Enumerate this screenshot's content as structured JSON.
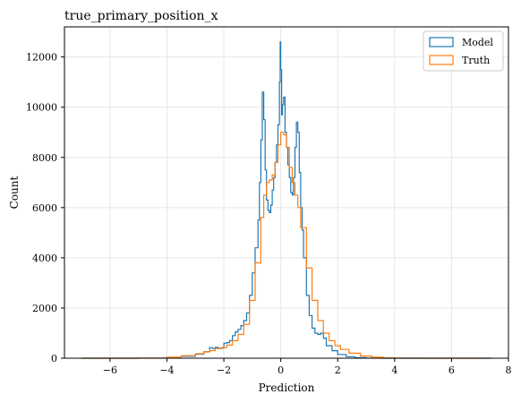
{
  "chart_data": {
    "type": "line",
    "title": "true_primary_position_x",
    "xlabel": "Prediction",
    "ylabel": "Count",
    "xlim": [
      -7.6,
      8.0
    ],
    "ylim": [
      0,
      13200
    ],
    "grid": true,
    "legend_position": "top-right",
    "x_ticks": [
      -6,
      -4,
      -2,
      0,
      2,
      4,
      6,
      8
    ],
    "x_tick_labels": [
      "−6",
      "−4",
      "−2",
      "0",
      "2",
      "4",
      "6",
      "8"
    ],
    "y_ticks": [
      0,
      2000,
      4000,
      6000,
      8000,
      10000,
      12000
    ],
    "y_tick_labels": [
      "0",
      "2000",
      "4000",
      "6000",
      "8000",
      "10000",
      "12000"
    ],
    "series": [
      {
        "name": "Model",
        "color": "#1f77b4",
        "x": [
          -7.0,
          -6.0,
          -5.0,
          -4.0,
          -3.5,
          -3.0,
          -2.7,
          -2.5,
          -2.4,
          -2.3,
          -2.2,
          -2.0,
          -1.9,
          -1.8,
          -1.7,
          -1.6,
          -1.5,
          -1.4,
          -1.3,
          -1.2,
          -1.1,
          -1.0,
          -0.9,
          -0.8,
          -0.75,
          -0.7,
          -0.65,
          -0.6,
          -0.55,
          -0.5,
          -0.45,
          -0.4,
          -0.35,
          -0.3,
          -0.25,
          -0.2,
          -0.15,
          -0.1,
          -0.05,
          -0.02,
          0.0,
          0.03,
          0.06,
          0.1,
          0.15,
          0.2,
          0.25,
          0.3,
          0.35,
          0.4,
          0.45,
          0.5,
          0.55,
          0.6,
          0.65,
          0.7,
          0.75,
          0.8,
          0.9,
          1.0,
          1.1,
          1.2,
          1.3,
          1.4,
          1.5,
          1.6,
          1.8,
          2.0,
          2.3,
          2.6,
          3.0,
          3.5,
          4.0,
          5.0,
          6.0,
          7.0,
          7.4
        ],
        "y": [
          0,
          0,
          5,
          30,
          80,
          160,
          260,
          420,
          380,
          430,
          400,
          600,
          620,
          700,
          900,
          1050,
          1150,
          1300,
          1500,
          1800,
          2500,
          3400,
          4400,
          5500,
          7000,
          8700,
          10600,
          9500,
          7500,
          6300,
          5900,
          5800,
          6100,
          6700,
          7200,
          7800,
          8500,
          9300,
          11000,
          12600,
          11500,
          9700,
          10100,
          10400,
          9000,
          8400,
          7700,
          7200,
          6600,
          6500,
          7200,
          8400,
          9400,
          9000,
          7400,
          6000,
          5100,
          4000,
          2500,
          1700,
          1200,
          1000,
          950,
          1000,
          800,
          500,
          300,
          150,
          60,
          20,
          5,
          0,
          0,
          0,
          0,
          0,
          0
        ]
      },
      {
        "name": "Truth",
        "color": "#ff7f0e",
        "x": [
          -7.0,
          -6.0,
          -5.0,
          -4.0,
          -3.5,
          -3.0,
          -2.7,
          -2.5,
          -2.3,
          -2.1,
          -1.9,
          -1.7,
          -1.5,
          -1.3,
          -1.1,
          -0.9,
          -0.7,
          -0.6,
          -0.5,
          -0.4,
          -0.3,
          -0.2,
          -0.1,
          0.0,
          0.1,
          0.2,
          0.3,
          0.4,
          0.5,
          0.6,
          0.7,
          0.9,
          1.1,
          1.3,
          1.5,
          1.7,
          1.9,
          2.1,
          2.4,
          2.8,
          3.2,
          3.6,
          4.0,
          5.0,
          6.0,
          7.0,
          7.4
        ],
        "y": [
          0,
          0,
          5,
          40,
          100,
          180,
          250,
          300,
          380,
          420,
          520,
          700,
          950,
          1350,
          2300,
          3800,
          5600,
          6500,
          7000,
          7100,
          7300,
          7800,
          8500,
          9000,
          8900,
          8400,
          7600,
          7000,
          6500,
          6000,
          5200,
          3600,
          2300,
          1500,
          1000,
          700,
          500,
          350,
          200,
          90,
          40,
          15,
          5,
          0,
          0,
          0,
          0
        ]
      }
    ]
  }
}
